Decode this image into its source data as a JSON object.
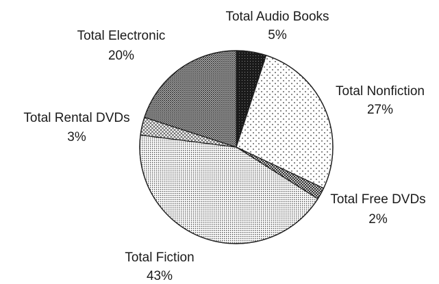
{
  "chart_data": {
    "type": "pie",
    "slices": [
      {
        "label": "Total Audio Books",
        "value": 5,
        "value_label": "5%",
        "pattern": "solid-dark"
      },
      {
        "label": "Total Nonfiction",
        "value": 27,
        "value_label": "27%",
        "pattern": "sparse-dots"
      },
      {
        "label": "Total Free DVDs",
        "value": 2,
        "value_label": "2%",
        "pattern": "crosshatch"
      },
      {
        "label": "Total Fiction",
        "value": 43,
        "value_label": "43%",
        "pattern": "fine-dots"
      },
      {
        "label": "Total Rental DVDs",
        "value": 3,
        "value_label": "3%",
        "pattern": "crosshatch-light"
      },
      {
        "label": "Total Electronic",
        "value": 20,
        "value_label": "20%",
        "pattern": "crosshatch-dense"
      }
    ],
    "start_angle_deg": 0,
    "direction": "clockwise"
  },
  "colors": {
    "outline": "#222222",
    "text": "#1a1a1a"
  }
}
